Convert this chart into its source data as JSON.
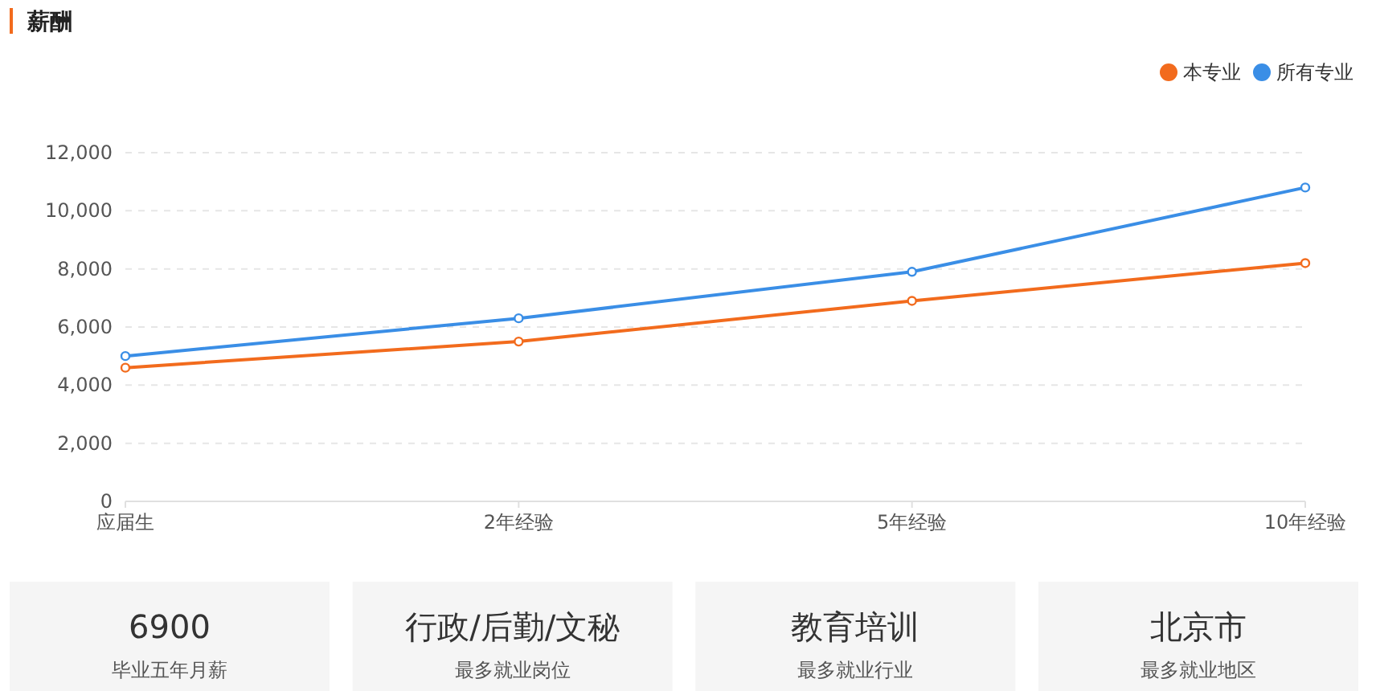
{
  "chart_data": [
    {
      "type": "line",
      "title": "薪酬",
      "categories": [
        "应届生",
        "2年经验",
        "5年经验",
        "10年经验"
      ],
      "series": [
        {
          "name": "本专业",
          "color": "#f26b1d",
          "values": [
            4600,
            5500,
            6900,
            8200
          ]
        },
        {
          "name": "所有专业",
          "color": "#3a8ee6",
          "values": [
            5000,
            6300,
            7900,
            10800
          ]
        }
      ],
      "ylim": [
        0,
        12000
      ],
      "yticks": [
        {
          "value": 0,
          "label": "0"
        },
        {
          "value": 2000,
          "label": "2,000"
        },
        {
          "value": 4000,
          "label": "4,000"
        },
        {
          "value": 6000,
          "label": "6,000"
        },
        {
          "value": 8000,
          "label": "8,000"
        },
        {
          "value": 10000,
          "label": "10,000"
        },
        {
          "value": 12000,
          "label": "12,000"
        }
      ],
      "grid": "y",
      "legend": "top right",
      "marker": "circle",
      "line_style": "solid"
    },
    {
      "type": "other",
      "categories": [
        "毕业五年月薪",
        "最多就业岗位",
        "最多就业行业",
        "最多就业地区"
      ],
      "annotations": [
        "6900",
        "行政/后勤/文秘",
        "教育培训",
        "北京市"
      ]
    }
  ]
}
